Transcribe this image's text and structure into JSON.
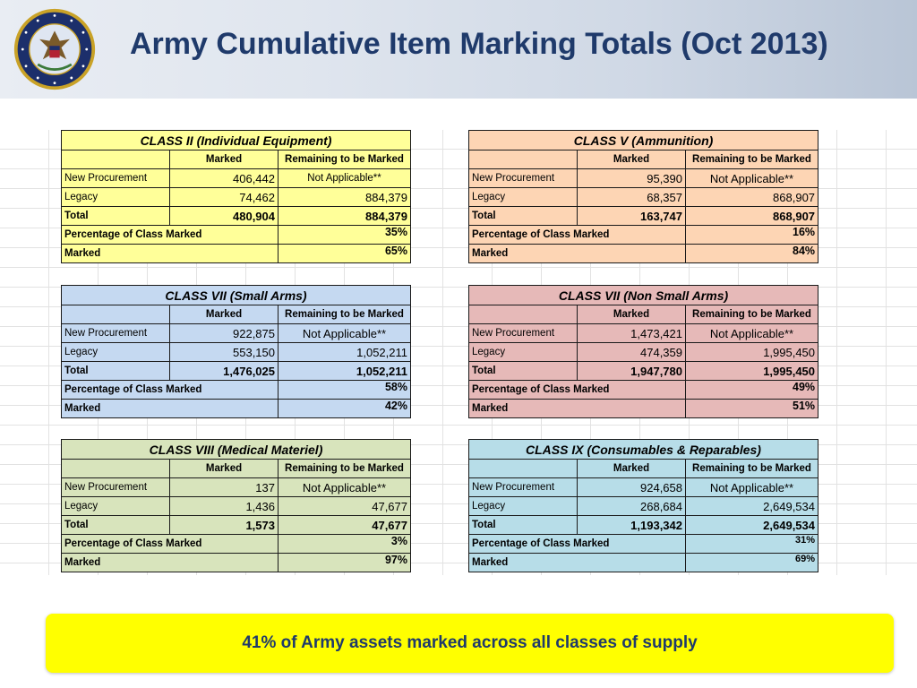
{
  "header": {
    "title": "Army Cumulative Item Marking Totals (Oct 2013)",
    "seal_icon": "department-of-defense-seal",
    "seal_text": "DEPARTMENT OF DEFENSE · UNITED STATES OF AMERICA"
  },
  "colors": {
    "title_text": "#1f3a6b",
    "class_ii": "#ffff99",
    "class_v": "#fdd5b4",
    "class_vii_small": "#c5d9f1",
    "class_vii_nonsmall": "#e6b9b8",
    "class_viii": "#d8e4bc",
    "class_ix": "#b7dde8",
    "banner": "#ffff00"
  },
  "col_headers": {
    "marked": "Marked",
    "remaining": "Remaining to be Marked"
  },
  "row_labels": {
    "new_procurement": "New Procurement",
    "legacy": "Legacy",
    "total": "Total",
    "percentage": "Percentage of Class Marked",
    "marked": "Marked"
  },
  "tables": {
    "class_ii": {
      "title": "CLASS II (Individual Equipment)",
      "new_marked": "406,442",
      "new_remaining": "Not Applicable**",
      "legacy_marked": "74,462",
      "legacy_remaining": "884,379",
      "total_marked": "480,904",
      "total_remaining": "884,379",
      "pct_class": "35%",
      "pct_marked": "65%"
    },
    "class_v": {
      "title": "CLASS V (Ammunition)",
      "new_marked": "95,390",
      "new_remaining": "Not Applicable**",
      "legacy_marked": "68,357",
      "legacy_remaining": "868,907",
      "total_marked": "163,747",
      "total_remaining": "868,907",
      "pct_class": "16%",
      "pct_marked": "84%"
    },
    "class_vii_small": {
      "title": "CLASS VII (Small Arms)",
      "new_marked": "922,875",
      "new_remaining": "Not Applicable**",
      "legacy_marked": "553,150",
      "legacy_remaining": "1,052,211",
      "total_marked": "1,476,025",
      "total_remaining": "1,052,211",
      "pct_class": "58%",
      "pct_marked": "42%"
    },
    "class_vii_nonsmall": {
      "title": "CLASS VII (Non Small Arms)",
      "new_marked": "1,473,421",
      "new_remaining": "Not Applicable**",
      "legacy_marked": "474,359",
      "legacy_remaining": "1,995,450",
      "total_marked": "1,947,780",
      "total_remaining": "1,995,450",
      "pct_class": "49%",
      "pct_marked": "51%"
    },
    "class_viii": {
      "title": "CLASS VIII (Medical Materiel)",
      "new_marked": "137",
      "new_remaining": "Not Applicable**",
      "legacy_marked": "1,436",
      "legacy_remaining": "47,677",
      "total_marked": "1,573",
      "total_remaining": "47,677",
      "pct_class": "3%",
      "pct_marked": "97%"
    },
    "class_ix": {
      "title": "CLASS IX (Consumables & Reparables)",
      "new_marked": "924,658",
      "new_remaining": "Not Applicable**",
      "legacy_marked": "268,684",
      "legacy_remaining": "2,649,534",
      "total_marked": "1,193,342",
      "total_remaining": "2,649,534",
      "pct_class": "31%",
      "pct_marked": "69%"
    }
  },
  "banner": {
    "text": "41% of Army assets marked across all classes of supply"
  }
}
